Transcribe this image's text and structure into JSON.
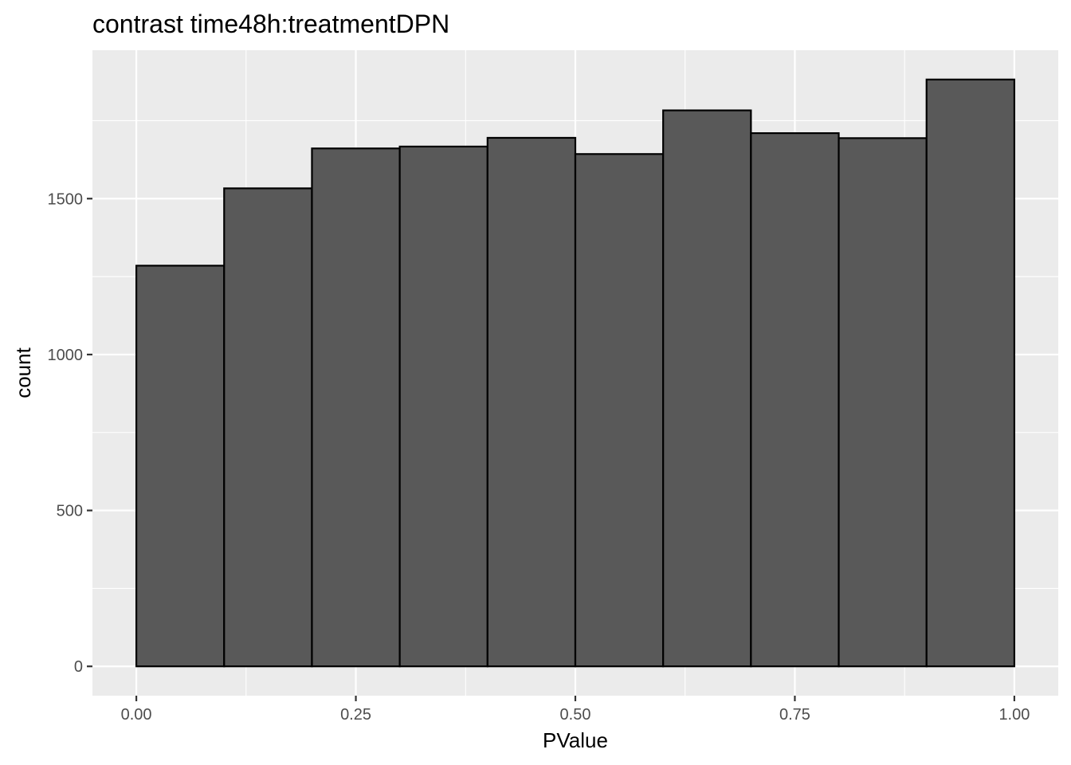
{
  "chart_data": {
    "type": "histogram",
    "title": "contrast time48h:treatmentDPN",
    "xlabel": "PValue",
    "ylabel": "count",
    "bin_edges": [
      0.0,
      0.1,
      0.2,
      0.3,
      0.4,
      0.5,
      0.6,
      0.7,
      0.8,
      0.9,
      1.0
    ],
    "values": [
      1285,
      1533,
      1661,
      1667,
      1695,
      1643,
      1783,
      1710,
      1694,
      1882
    ],
    "xlim": [
      -0.05,
      1.05
    ],
    "ylim": [
      -94,
      1976
    ],
    "x_ticks": [
      0.0,
      0.25,
      0.5,
      0.75,
      1.0
    ],
    "x_tick_labels": [
      "0.00",
      "0.25",
      "0.50",
      "0.75",
      "1.00"
    ],
    "y_ticks": [
      0,
      500,
      1000,
      1500
    ],
    "y_tick_labels": [
      "0",
      "500",
      "1000",
      "1500"
    ],
    "grid": true,
    "colors": {
      "panel_background": "#ebebeb",
      "grid_line": "#ffffff",
      "bar_fill": "#595959",
      "bar_outline": "#000000",
      "tick_text": "#4d4d4d",
      "tick_mark": "#333333"
    }
  }
}
